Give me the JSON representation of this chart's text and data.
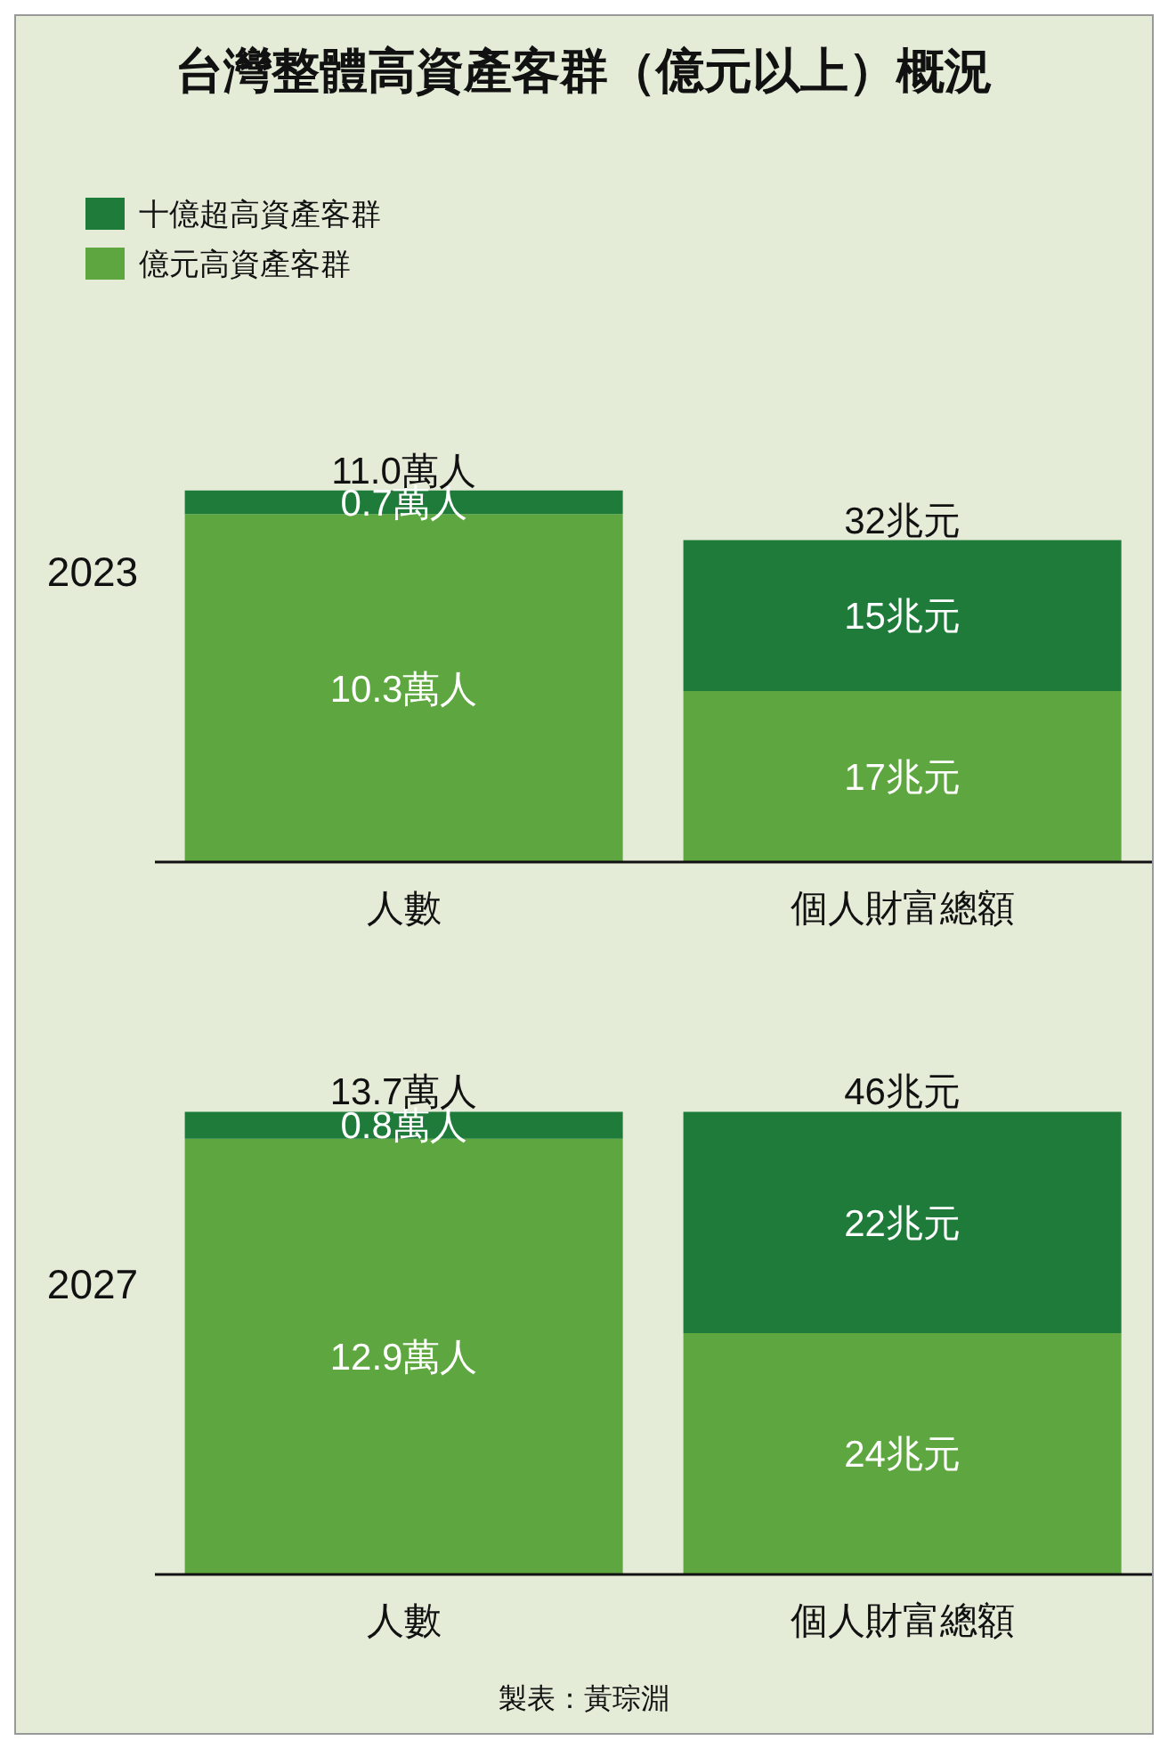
{
  "chart_data": [
    {
      "type": "bar",
      "stacked": true,
      "title": "台灣整體高資產客群（億元以上）概況",
      "legend": "top left",
      "ylabel": "2023",
      "categories": [
        "人數",
        "個人財富總額"
      ],
      "series": [
        {
          "name": "億元高資產客群",
          "color": "#5ea63f",
          "values": [
            10.3,
            null
          ],
          "value_labels": [
            "10.3萬人",
            null
          ]
        },
        {
          "name": "十億超高資產客群",
          "color": "#1e7b3a",
          "values": [
            0.7,
            null
          ],
          "value_labels": [
            "0.7萬人",
            null
          ]
        },
        {
          "color": "#5ea63f",
          "axis": "y2",
          "values": [
            null,
            17
          ],
          "value_labels": [
            null,
            "17兆元"
          ]
        },
        {
          "color": "#1e7b3a",
          "axis": "y2",
          "values": [
            null,
            15
          ],
          "value_labels": [
            null,
            "15兆元"
          ]
        }
      ],
      "totals": [
        "11.0萬人",
        null
      ],
      "annotations": [
        "32兆元"
      ]
    },
    {
      "type": "bar",
      "stacked": true,
      "annotations": [
        "46兆元",
        "製表：黃琮淵"
      ],
      "ylabel": "2027",
      "categories": [
        "人數",
        "個人財富總額"
      ],
      "series": [
        {
          "color": "#5ea63f",
          "values": [
            12.9,
            null
          ],
          "value_labels": [
            "12.9萬人",
            null
          ]
        },
        {
          "color": "#1e7b3a",
          "values": [
            0.8,
            null
          ],
          "value_labels": [
            "0.8萬人",
            null
          ]
        },
        {
          "color": "#5ea63f",
          "axis": "y2",
          "values": [
            null,
            24
          ],
          "value_labels": [
            null,
            "24兆元"
          ]
        },
        {
          "color": "#1e7b3a",
          "axis": "y2",
          "values": [
            null,
            22
          ],
          "value_labels": [
            null,
            "22兆元"
          ]
        }
      ],
      "totals": [
        "13.7萬人",
        null
      ]
    }
  ]
}
